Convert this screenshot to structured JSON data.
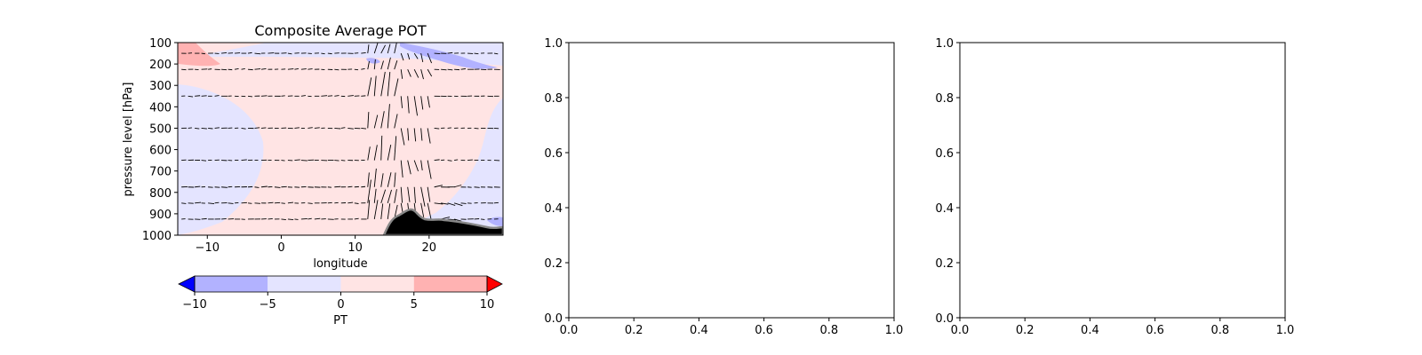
{
  "chart_data": [
    {
      "type": "contour",
      "title": "Composite Average POT",
      "xlabel": "longitude",
      "ylabel": "pressure level [hPa]",
      "xlim": [
        -14,
        30
      ],
      "ylim": [
        1000,
        100
      ],
      "x_ticks": [
        -10,
        0,
        10,
        20
      ],
      "y_ticks": [
        100,
        200,
        300,
        400,
        500,
        600,
        700,
        800,
        900,
        1000
      ],
      "overlay": "wind vectors (quiver) with terrain cross-section",
      "colorbar": {
        "label": "PT",
        "ticks": [
          -10,
          -5,
          0,
          5,
          10
        ],
        "levels": [
          -10,
          -5,
          0,
          5,
          10
        ],
        "colors": [
          "#b2b2ff",
          "#e4e4ff",
          "#ffe4e4",
          "#ffb2b2"
        ],
        "extend_colors": {
          "min": "#0000ff",
          "max": "#ff0000"
        },
        "orientation": "horizontal"
      },
      "terrain_color": "#000000"
    },
    {
      "type": "empty",
      "xlim": [
        0,
        1
      ],
      "ylim": [
        0,
        1
      ],
      "x_ticks": [
        "0.0",
        "0.2",
        "0.4",
        "0.6",
        "0.8",
        "1.0"
      ],
      "y_ticks": [
        "0.0",
        "0.2",
        "0.4",
        "0.6",
        "0.8",
        "1.0"
      ]
    },
    {
      "type": "empty",
      "xlim": [
        0,
        1
      ],
      "ylim": [
        0,
        1
      ],
      "x_ticks": [
        "0.0",
        "0.2",
        "0.4",
        "0.6",
        "0.8",
        "1.0"
      ],
      "y_ticks": [
        "0.0",
        "0.2",
        "0.4",
        "0.6",
        "0.8",
        "1.0"
      ]
    }
  ]
}
